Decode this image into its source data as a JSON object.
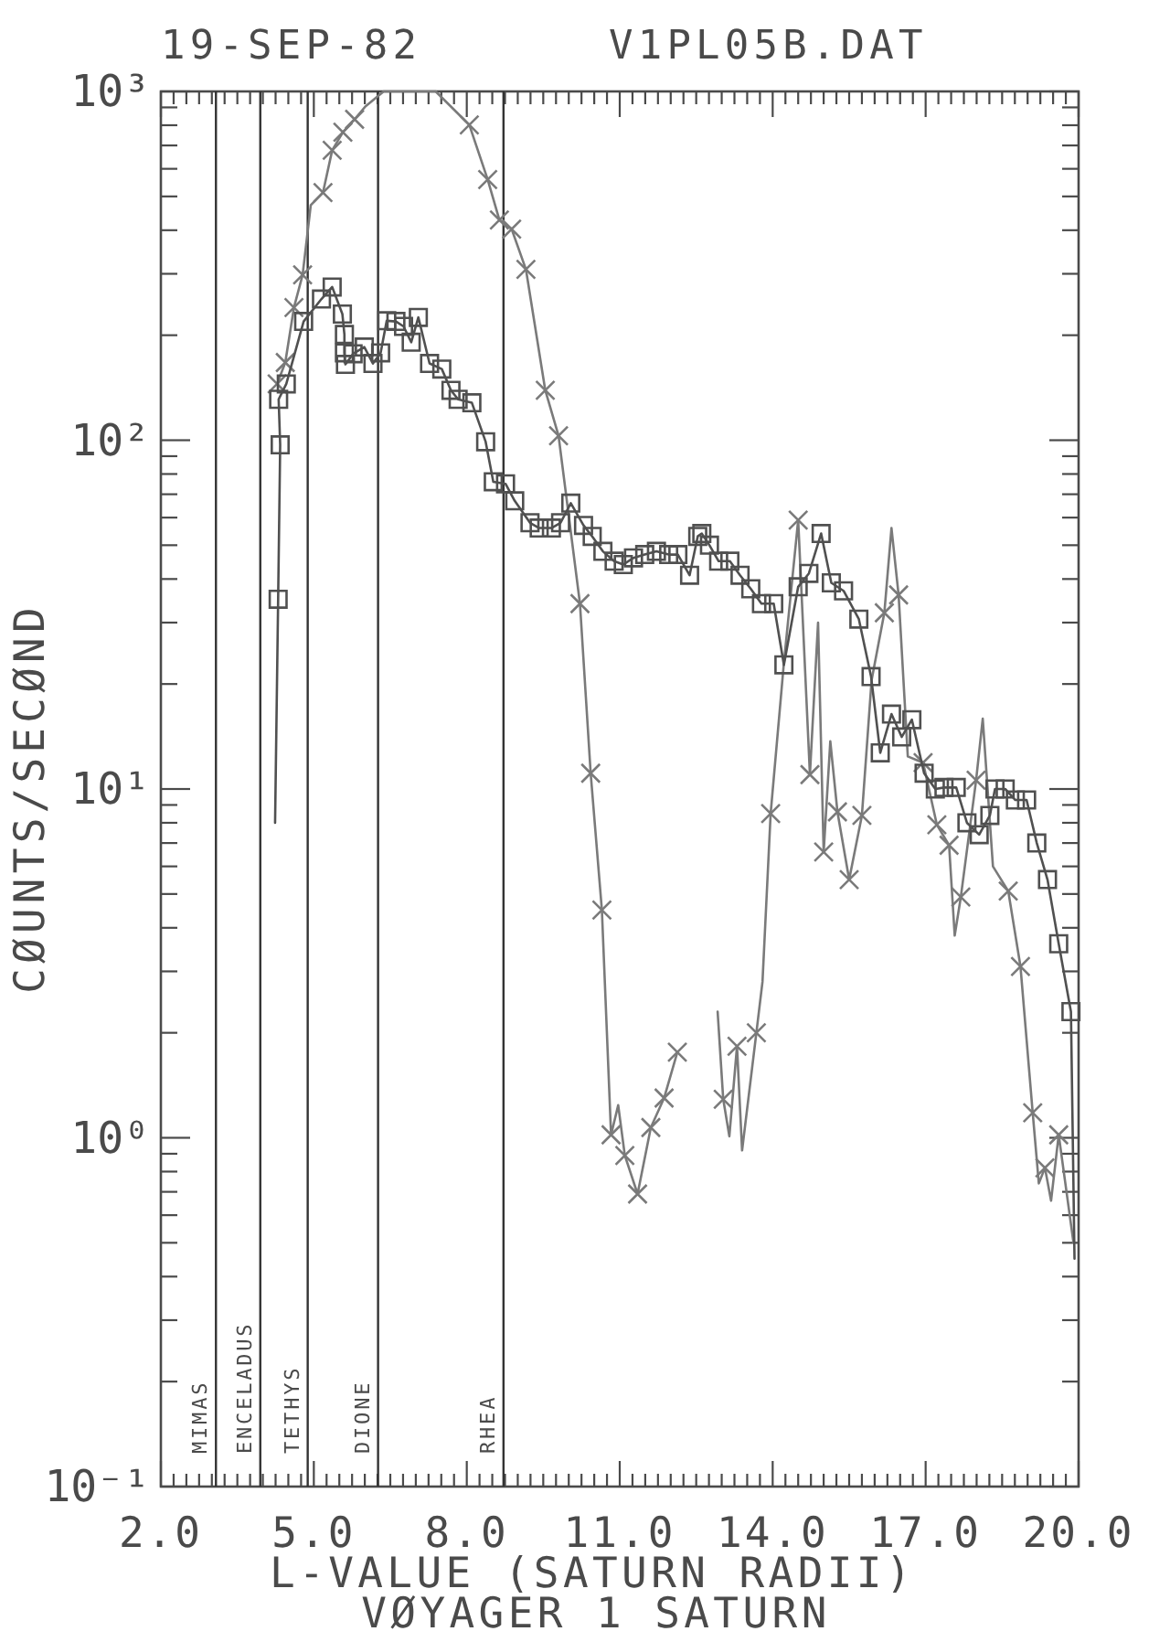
{
  "chart_data": {
    "type": "line",
    "title": "19-SEP-82",
    "subtitle": "V1PL05B.DAT",
    "xlabel": "L-VALUE (SATURN RADII)",
    "ylabel": "CØUNTS/SECØND",
    "annotations": [
      "VØYAGER 1 SATURN"
    ],
    "xlim": [
      2,
      20
    ],
    "ylim": [
      0.1,
      1000
    ],
    "log": "y",
    "xticks": [
      {
        "value": 2,
        "label": "2.0"
      },
      {
        "value": 2.25,
        "label": null
      },
      {
        "value": 2.5,
        "label": null
      },
      {
        "value": 2.75,
        "label": null
      },
      {
        "value": 3,
        "label": null
      },
      {
        "value": 3.25,
        "label": null
      },
      {
        "value": 3.5,
        "label": null
      },
      {
        "value": 3.75,
        "label": null
      },
      {
        "value": 4,
        "label": null
      },
      {
        "value": 4.25,
        "label": null
      },
      {
        "value": 4.5,
        "label": null
      },
      {
        "value": 4.75,
        "label": null
      },
      {
        "value": 5,
        "label": "5.0"
      },
      {
        "value": 5.25,
        "label": null
      },
      {
        "value": 5.5,
        "label": null
      },
      {
        "value": 5.75,
        "label": null
      },
      {
        "value": 6,
        "label": null
      },
      {
        "value": 6.25,
        "label": null
      },
      {
        "value": 6.5,
        "label": null
      },
      {
        "value": 6.75,
        "label": null
      },
      {
        "value": 7,
        "label": null
      },
      {
        "value": 7.25,
        "label": null
      },
      {
        "value": 7.5,
        "label": null
      },
      {
        "value": 7.75,
        "label": null
      },
      {
        "value": 8,
        "label": "8.0"
      },
      {
        "value": 8.25,
        "label": null
      },
      {
        "value": 8.5,
        "label": null
      },
      {
        "value": 8.75,
        "label": null
      },
      {
        "value": 9,
        "label": null
      },
      {
        "value": 9.25,
        "label": null
      },
      {
        "value": 9.5,
        "label": null
      },
      {
        "value": 9.75,
        "label": null
      },
      {
        "value": 10,
        "label": null
      },
      {
        "value": 10.25,
        "label": null
      },
      {
        "value": 10.5,
        "label": null
      },
      {
        "value": 10.75,
        "label": null
      },
      {
        "value": 11,
        "label": "11.0"
      },
      {
        "value": 11.25,
        "label": null
      },
      {
        "value": 11.5,
        "label": null
      },
      {
        "value": 11.75,
        "label": null
      },
      {
        "value": 12,
        "label": null
      },
      {
        "value": 12.25,
        "label": null
      },
      {
        "value": 12.5,
        "label": null
      },
      {
        "value": 12.75,
        "label": null
      },
      {
        "value": 13,
        "label": null
      },
      {
        "value": 13.25,
        "label": null
      },
      {
        "value": 13.5,
        "label": null
      },
      {
        "value": 13.75,
        "label": null
      },
      {
        "value": 14,
        "label": "14.0"
      },
      {
        "value": 14.25,
        "label": null
      },
      {
        "value": 14.5,
        "label": null
      },
      {
        "value": 14.75,
        "label": null
      },
      {
        "value": 15,
        "label": null
      },
      {
        "value": 15.25,
        "label": null
      },
      {
        "value": 15.5,
        "label": null
      },
      {
        "value": 15.75,
        "label": null
      },
      {
        "value": 16,
        "label": null
      },
      {
        "value": 16.25,
        "label": null
      },
      {
        "value": 16.5,
        "label": null
      },
      {
        "value": 16.75,
        "label": null
      },
      {
        "value": 17,
        "label": "17.0"
      },
      {
        "value": 17.25,
        "label": null
      },
      {
        "value": 17.5,
        "label": null
      },
      {
        "value": 17.75,
        "label": null
      },
      {
        "value": 18,
        "label": null
      },
      {
        "value": 18.25,
        "label": null
      },
      {
        "value": 18.5,
        "label": null
      },
      {
        "value": 18.75,
        "label": null
      },
      {
        "value": 19,
        "label": null
      },
      {
        "value": 19.25,
        "label": null
      },
      {
        "value": 19.5,
        "label": null
      },
      {
        "value": 19.75,
        "label": null
      },
      {
        "value": 20,
        "label": "20.0"
      }
    ],
    "yticks": [
      {
        "value": 0.1,
        "label": "10⁻¹"
      },
      {
        "value": 0.2,
        "label": null
      },
      {
        "value": 0.3,
        "label": null
      },
      {
        "value": 0.4,
        "label": null
      },
      {
        "value": 0.5,
        "label": null
      },
      {
        "value": 0.6,
        "label": null
      },
      {
        "value": 0.7,
        "label": null
      },
      {
        "value": 0.8,
        "label": null
      },
      {
        "value": 0.9,
        "label": null
      },
      {
        "value": 1,
        "label": "10⁰"
      },
      {
        "value": 2,
        "label": null
      },
      {
        "value": 3,
        "label": null
      },
      {
        "value": 4,
        "label": null
      },
      {
        "value": 5,
        "label": null
      },
      {
        "value": 6,
        "label": null
      },
      {
        "value": 7,
        "label": null
      },
      {
        "value": 8,
        "label": null
      },
      {
        "value": 9,
        "label": null
      },
      {
        "value": 10,
        "label": "10¹"
      },
      {
        "value": 20,
        "label": null
      },
      {
        "value": 30,
        "label": null
      },
      {
        "value": 40,
        "label": null
      },
      {
        "value": 50,
        "label": null
      },
      {
        "value": 60,
        "label": null
      },
      {
        "value": 70,
        "label": null
      },
      {
        "value": 80,
        "label": null
      },
      {
        "value": 90,
        "label": null
      },
      {
        "value": 100,
        "label": "10²"
      },
      {
        "value": 200,
        "label": null
      },
      {
        "value": 300,
        "label": null
      },
      {
        "value": 400,
        "label": null
      },
      {
        "value": 500,
        "label": null
      },
      {
        "value": 600,
        "label": null
      },
      {
        "value": 700,
        "label": null
      },
      {
        "value": 800,
        "label": null
      },
      {
        "value": 900,
        "label": null
      },
      {
        "value": 1000,
        "label": "10³"
      }
    ],
    "ref_lines": [
      {
        "axis": "x",
        "value": 3.08,
        "label": "MIMAS"
      },
      {
        "axis": "x",
        "value": 3.95,
        "label": "ENCELADUS"
      },
      {
        "axis": "x",
        "value": 4.88,
        "label": "TETHYS"
      },
      {
        "axis": "x",
        "value": 6.26,
        "label": "DIONE"
      },
      {
        "axis": "x",
        "value": 8.72,
        "label": "RHEA"
      }
    ],
    "series": [
      {
        "type": "line",
        "color": "#7a7a7a",
        "marker": "none",
        "x": [
          4.28,
          4.44,
          4.61,
          4.78,
          4.94,
          5.18,
          5.36,
          5.57,
          5.8,
          6.01,
          6.37,
          7.39,
          8.05,
          8.41,
          8.64,
          8.88,
          9.16,
          9.54,
          9.8,
          10.22,
          10.43,
          10.65,
          10.83,
          10.97,
          11.1,
          11.35,
          11.61,
          11.87,
          12.13,
          12.5,
          12.92,
          13.03,
          13.15,
          13.3,
          13.4,
          13.68,
          13.8,
          13.96,
          14.22,
          14.5,
          14.73,
          14.89,
          15.0,
          15.13,
          15.27,
          15.5,
          15.75,
          15.94,
          16.19,
          16.33,
          16.47,
          16.65,
          16.95,
          17.22,
          17.46,
          17.57,
          17.69,
          17.99,
          18.12,
          18.32,
          18.62,
          18.86,
          19.1,
          19.22,
          19.34,
          19.46,
          19.61,
          19.9
        ],
        "values": [
          145,
          167,
          240,
          298,
          472,
          513,
          678,
          764,
          832,
          905,
          1000,
          1000,
          802,
          559,
          428,
          403,
          309,
          139,
          103,
          34,
          11.1,
          4.5,
          1.02,
          1.24,
          0.89,
          0.69,
          1.07,
          1.3,
          1.76,
          null,
          2.3,
          1.29,
          1.01,
          1.83,
          0.92,
          2.0,
          2.8,
          8.5,
          23,
          59,
          11,
          30,
          6.6,
          13.7,
          8.6,
          5.5,
          8.4,
          20.5,
          32,
          56,
          36,
          12.4,
          11.9,
          7.9,
          6.9,
          3.8,
          4.9,
          10.6,
          15.9,
          6.0,
          5.1,
          3.1,
          1.18,
          0.74,
          0.82,
          0.66,
          1.02,
          0.5
        ]
      },
      {
        "type": "scatter",
        "color": "#7a7a7a",
        "marker": "cross",
        "x": [
          4.28,
          4.44,
          4.61,
          4.78,
          5.18,
          5.36,
          5.57,
          5.8,
          8.05,
          8.41,
          8.64,
          8.88,
          9.16,
          9.54,
          9.8,
          10.22,
          10.43,
          10.65,
          10.83,
          11.1,
          11.35,
          11.61,
          11.87,
          12.13,
          13.03,
          13.3,
          13.68,
          13.96,
          14.5,
          14.73,
          15.0,
          15.27,
          15.5,
          15.75,
          16.19,
          16.47,
          16.95,
          17.22,
          17.46,
          17.69,
          17.99,
          18.62,
          18.86,
          19.1,
          19.34,
          19.61
        ],
        "values": [
          145,
          167,
          240,
          298,
          513,
          678,
          764,
          832,
          802,
          559,
          428,
          403,
          309,
          139,
          103,
          34,
          11.1,
          4.5,
          1.02,
          0.89,
          0.69,
          1.07,
          1.3,
          1.76,
          1.29,
          1.83,
          2.0,
          8.5,
          59,
          11,
          6.6,
          8.6,
          5.5,
          8.4,
          32,
          36,
          11.9,
          7.9,
          6.9,
          4.9,
          10.6,
          5.1,
          3.1,
          1.18,
          0.82,
          1.02
        ]
      },
      {
        "type": "line",
        "color": "#505050",
        "marker": "none",
        "x": [
          4.24,
          4.3,
          4.34,
          4.31,
          4.46,
          4.8,
          5.15,
          5.36,
          5.56,
          5.6,
          5.6,
          5.62,
          5.77,
          5.99,
          6.16,
          6.31,
          6.43,
          6.61,
          6.76,
          6.91,
          7.05,
          7.27,
          7.51,
          7.69,
          7.83,
          8.1,
          8.37,
          8.52,
          8.76,
          8.94,
          9.24,
          9.42,
          9.66,
          9.84,
          10.04,
          10.29,
          10.46,
          10.67,
          10.89,
          11.07,
          11.27,
          11.49,
          11.72,
          11.96,
          12.14,
          12.37,
          12.53,
          12.61,
          12.76,
          12.94,
          13.16,
          13.36,
          13.57,
          13.78,
          14.02,
          14.22,
          14.5,
          14.71,
          14.95,
          15.15,
          15.39,
          15.69,
          15.93,
          16.11,
          16.33,
          16.53,
          16.73,
          16.97,
          17.19,
          17.36,
          17.6,
          17.81,
          18.05,
          18.26,
          18.36,
          18.56,
          18.76,
          18.98,
          19.18,
          19.39,
          19.61,
          19.85,
          19.92
        ],
        "values": [
          8,
          35,
          97,
          131,
          145,
          219,
          254,
          275,
          230,
          201,
          178,
          165,
          177,
          185,
          166,
          178,
          220,
          219,
          212,
          191,
          225,
          166,
          160,
          139,
          131,
          128,
          99,
          76,
          75,
          67,
          58,
          56,
          56,
          58,
          66,
          57,
          53,
          48,
          45,
          44,
          46,
          47,
          48,
          47,
          47,
          41,
          53,
          54,
          50,
          45,
          45,
          41,
          37.5,
          34,
          34,
          22.7,
          38,
          41.5,
          54,
          39,
          37,
          30.7,
          21,
          12.7,
          16.4,
          14.1,
          15.8,
          11.1,
          10,
          10.1,
          10.1,
          8.0,
          7.4,
          8.4,
          10,
          10,
          9.3,
          9.3,
          7.0,
          5.5,
          3.6,
          2.3,
          0.45
        ]
      },
      {
        "type": "scatter",
        "color": "#505050",
        "marker": "square",
        "x": [
          4.3,
          4.34,
          4.31,
          4.46,
          4.8,
          5.15,
          5.36,
          5.56,
          5.6,
          5.6,
          5.62,
          5.77,
          5.99,
          6.16,
          6.31,
          6.43,
          6.61,
          6.76,
          6.91,
          7.05,
          7.27,
          7.51,
          7.69,
          7.83,
          8.1,
          8.37,
          8.52,
          8.76,
          8.94,
          9.24,
          9.42,
          9.66,
          9.84,
          10.04,
          10.29,
          10.46,
          10.67,
          10.89,
          11.07,
          11.27,
          11.49,
          11.72,
          11.96,
          12.14,
          12.37,
          12.53,
          12.61,
          12.76,
          12.94,
          13.16,
          13.36,
          13.57,
          13.78,
          14.02,
          14.22,
          14.5,
          14.71,
          14.95,
          15.15,
          15.39,
          15.69,
          15.93,
          16.11,
          16.33,
          16.53,
          16.73,
          16.97,
          17.19,
          17.36,
          17.6,
          17.81,
          18.05,
          18.26,
          18.36,
          18.56,
          18.76,
          18.98,
          19.18,
          19.39,
          19.61,
          19.85
        ],
        "values": [
          35,
          97,
          131,
          145,
          219,
          254,
          275,
          230,
          201,
          178,
          165,
          177,
          185,
          166,
          178,
          220,
          219,
          212,
          191,
          225,
          166,
          160,
          139,
          131,
          128,
          99,
          76,
          75,
          67,
          58,
          56,
          56,
          58,
          66,
          57,
          53,
          48,
          45,
          44,
          46,
          47,
          48,
          47,
          47,
          41,
          53,
          54,
          50,
          45,
          45,
          41,
          37.5,
          34,
          34,
          22.7,
          38,
          41.5,
          54,
          39,
          37,
          30.7,
          21,
          12.7,
          16.4,
          14.1,
          15.8,
          11.1,
          10,
          10.1,
          10.1,
          8.0,
          7.4,
          8.4,
          10,
          10,
          9.3,
          9.3,
          7.0,
          5.5,
          3.6,
          2.3
        ]
      }
    ]
  }
}
